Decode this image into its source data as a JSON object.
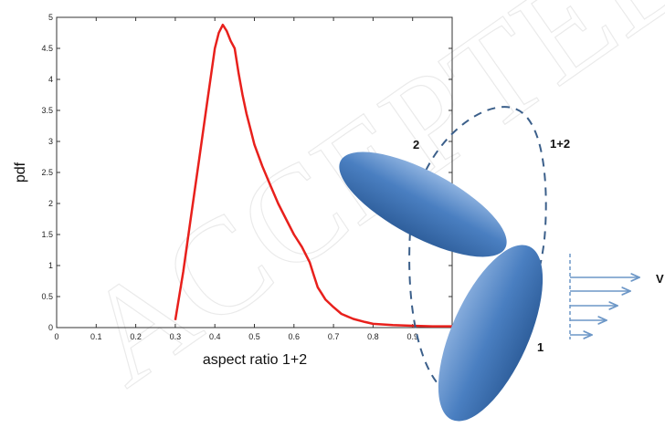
{
  "chart_data": {
    "type": "line",
    "title": "",
    "xlabel": "aspect ratio 1+2",
    "ylabel": "pdf",
    "xlim": [
      0,
      1
    ],
    "ylim": [
      0,
      5
    ],
    "xticks": [
      "0",
      "0.1",
      "0.2",
      "0.3",
      "0.4",
      "0.5",
      "0.6",
      "0.7",
      "0.8",
      "0.9"
    ],
    "yticks": [
      "0",
      "0.5",
      "1",
      "1.5",
      "2",
      "2.5",
      "3",
      "3.5",
      "4",
      "4.5",
      "5"
    ],
    "grid": false,
    "legend": "none",
    "series": [
      {
        "color": "#e8201c",
        "x": [
          0.3,
          0.32,
          0.34,
          0.36,
          0.38,
          0.4,
          0.41,
          0.42,
          0.43,
          0.44,
          0.45,
          0.46,
          0.47,
          0.48,
          0.49,
          0.5,
          0.52,
          0.54,
          0.56,
          0.58,
          0.6,
          0.62,
          0.64,
          0.65,
          0.66,
          0.67,
          0.68,
          0.7,
          0.72,
          0.75,
          0.78,
          0.8,
          0.85,
          0.9,
          0.95,
          1.0
        ],
        "y": [
          0.12,
          0.9,
          1.8,
          2.7,
          3.6,
          4.5,
          4.75,
          4.88,
          4.78,
          4.62,
          4.5,
          4.1,
          3.75,
          3.45,
          3.2,
          2.95,
          2.6,
          2.3,
          2.0,
          1.75,
          1.5,
          1.3,
          1.05,
          0.85,
          0.65,
          0.55,
          0.45,
          0.33,
          0.22,
          0.14,
          0.09,
          0.06,
          0.04,
          0.03,
          0.02,
          0.02
        ]
      }
    ]
  },
  "diagram": {
    "labels": {
      "particle_1": "1",
      "particle_2": "2",
      "combined": "1+2",
      "velocity": "V"
    },
    "ellipse_color": "#4a7fc1",
    "dash_color": "#3b5f8a",
    "arrow_color": "#6d97c7"
  }
}
